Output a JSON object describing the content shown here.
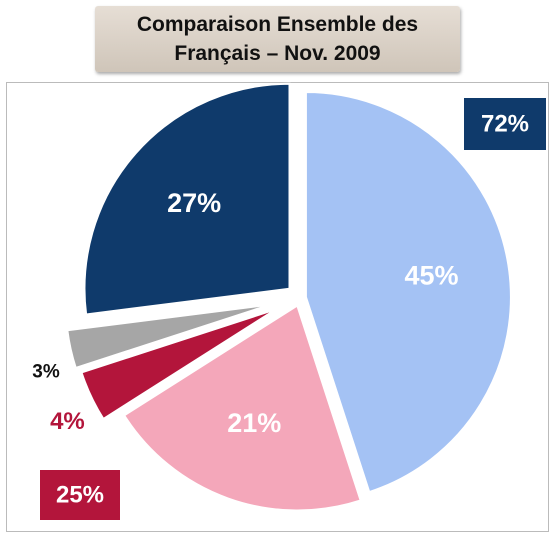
{
  "chart_data": {
    "type": "pie",
    "title": "Comparaison Ensemble des Français – Nov. 2009",
    "categories": [
      null,
      null,
      null,
      null,
      null
    ],
    "values": [
      45,
      21,
      4,
      3,
      27
    ],
    "value_labels": [
      "45%",
      "21%",
      "4%",
      "3%",
      "27%"
    ],
    "colors": [
      "#a4c2f4",
      "#f4a7ba",
      "#b3153b",
      "#a6a6a6",
      "#0f3a6b"
    ],
    "annotations": [
      {
        "text": "72%",
        "color": "#0f3a6b"
      },
      {
        "text": "25%",
        "color": "#b3153b"
      }
    ]
  }
}
